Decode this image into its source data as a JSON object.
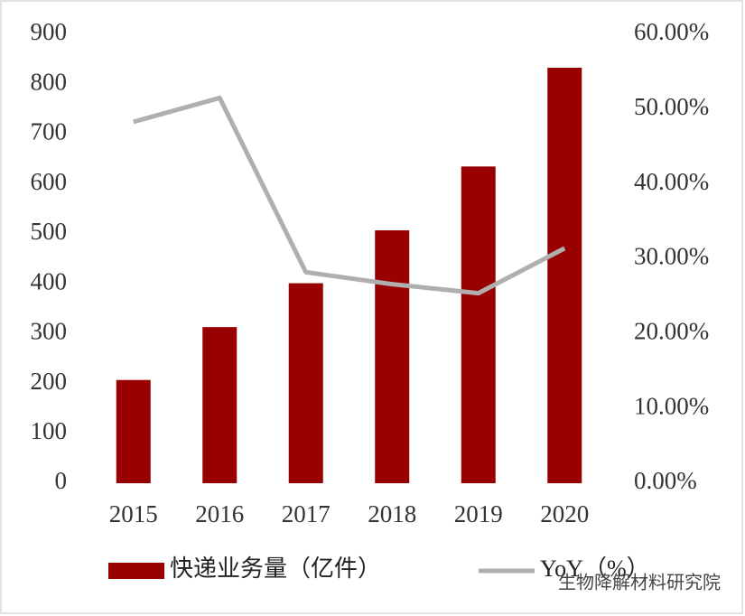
{
  "chart_data": {
    "type": "bar-line",
    "categories": [
      "2015",
      "2016",
      "2017",
      "2018",
      "2019",
      "2020"
    ],
    "series": [
      {
        "name": "快递业务量（亿件）",
        "type": "bar",
        "color": "#990000",
        "values": [
          207,
          313,
          401,
          507,
          635,
          833
        ]
      },
      {
        "name": "YoY（%）",
        "type": "line",
        "axis": "y2",
        "color": "#afafaf",
        "values": [
          48.3,
          51.5,
          28.2,
          26.6,
          25.4,
          31.4
        ]
      }
    ],
    "ylim": [
      0,
      900
    ],
    "yticks": [
      0,
      100,
      200,
      300,
      400,
      500,
      600,
      700,
      800,
      900
    ],
    "y2lim": [
      0,
      60
    ],
    "y2ticks": [
      {
        "value": 0,
        "label": "0.00%"
      },
      {
        "value": 10,
        "label": "10.00%"
      },
      {
        "value": 20,
        "label": "20.00%"
      },
      {
        "value": 30,
        "label": "30.00%"
      },
      {
        "value": 40,
        "label": "40.00%"
      },
      {
        "value": 50,
        "label": "50.00%"
      },
      {
        "value": 60,
        "label": "60.00%"
      }
    ],
    "grid": false,
    "legend": "bottom",
    "watermark": "生物降解材料研究院"
  }
}
